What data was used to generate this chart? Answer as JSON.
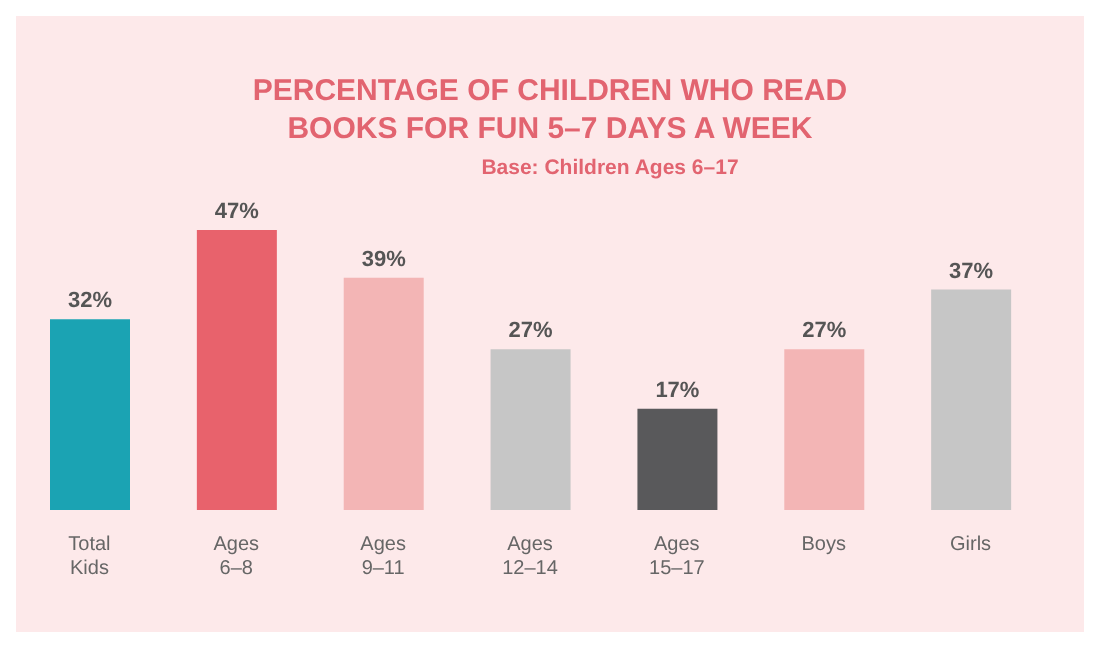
{
  "chart_data": {
    "type": "bar",
    "title": "PERCENTAGE OF CHILDREN WHO READ BOOKS FOR FUN 5–7 DAYS A WEEK",
    "subtitle": "Base: Children Ages 6–17",
    "categories": [
      "Total Kids",
      "Ages 6–8",
      "Ages 9–11",
      "Ages 12–14",
      "Ages 15–17",
      "Boys",
      "Girls"
    ],
    "values": [
      32,
      47,
      39,
      27,
      17,
      27,
      37
    ],
    "colors": [
      "#1ba3b3",
      "#e8626c",
      "#f3b5b5",
      "#c6c6c6",
      "#59595b",
      "#f3b5b5",
      "#c6c6c6"
    ],
    "value_labels": [
      "32%",
      "47%",
      "39%",
      "27%",
      "17%",
      "27%",
      "37%"
    ],
    "grid": false,
    "legend": false
  }
}
